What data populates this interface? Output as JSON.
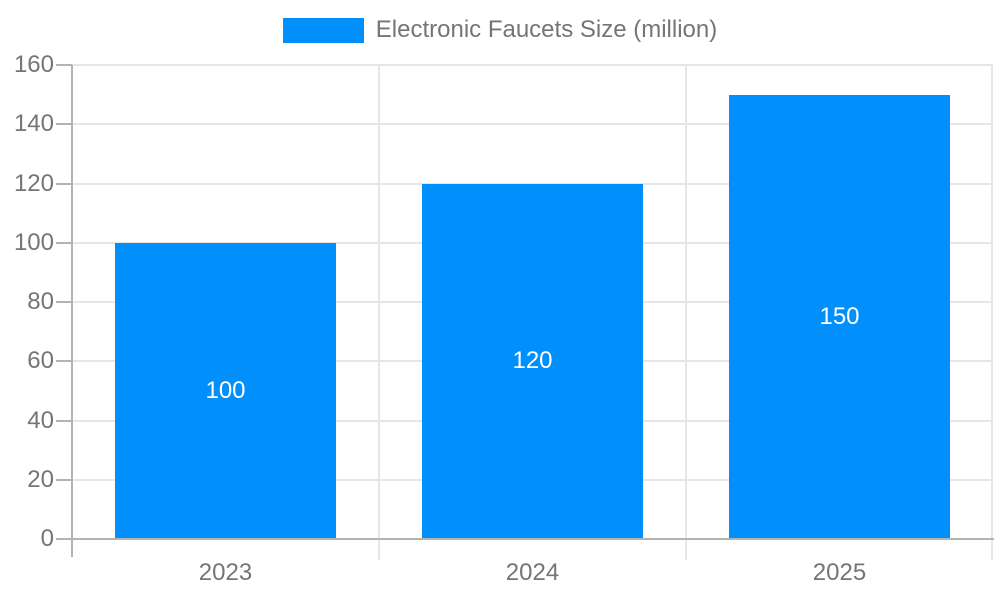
{
  "legend": {
    "label": "Electronic Faucets Size (million)"
  },
  "colors": {
    "bar": "#0190FB",
    "grid": "#E6E6E6",
    "axis": "#B3B3B3",
    "text": "#757575",
    "bar_label": "#FFFFFF",
    "background": "#FFFFFF"
  },
  "chart_data": {
    "type": "bar",
    "title": "Electronic Faucets Size (million)",
    "series_name": "Electronic Faucets Size (million)",
    "categories": [
      "2023",
      "2024",
      "2025"
    ],
    "values": [
      100,
      120,
      150
    ],
    "data_labels": [
      "100",
      "120",
      "150"
    ],
    "xlabel": "",
    "ylabel": "",
    "ylim": [
      0,
      160
    ],
    "ytick_step": 20,
    "yticks": [
      0,
      20,
      40,
      60,
      80,
      100,
      120,
      140,
      160
    ],
    "grid": true,
    "legend_position": "top-center",
    "bar_label_position": "inside-center"
  }
}
